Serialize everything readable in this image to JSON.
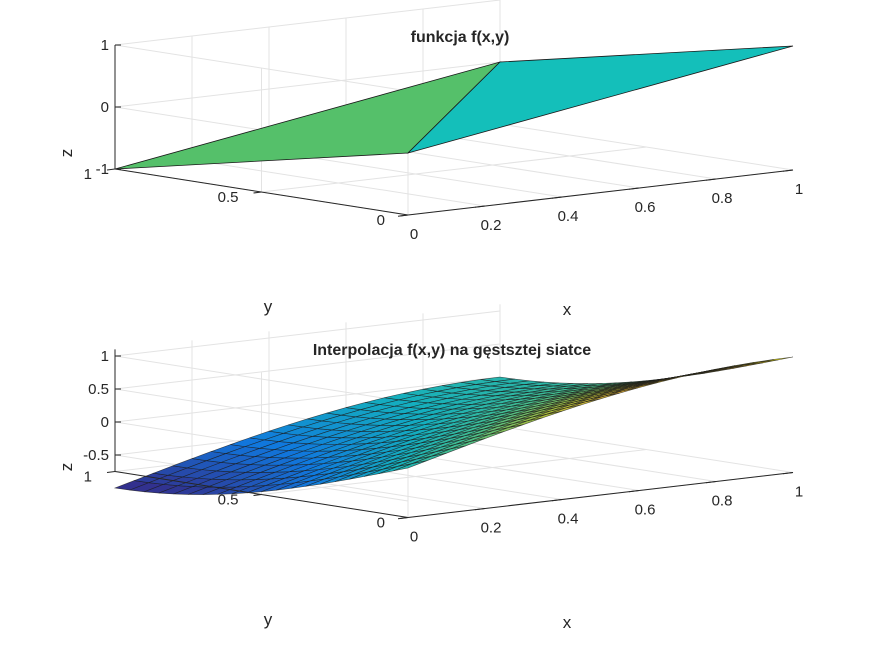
{
  "chart_data": [
    {
      "type": "surface",
      "title": "funkcja f(x,y)",
      "xlabel": "x",
      "ylabel": "y",
      "zlabel": "z",
      "x": [
        0,
        1
      ],
      "y": [
        0,
        1
      ],
      "z": [
        [
          0,
          1
        ],
        [
          -1,
          0
        ]
      ],
      "xlim": [
        0,
        1
      ],
      "ylim": [
        0,
        1
      ],
      "zlim": [
        -1,
        1
      ],
      "x_ticks": [
        "0",
        "0.2",
        "0.4",
        "0.6",
        "0.8",
        "1"
      ],
      "y_ticks": [
        "0",
        "0.5",
        "1"
      ],
      "z_ticks": [
        "-1",
        "0",
        "1"
      ],
      "grid": true,
      "colormap": "parula",
      "colors": {
        "surface": "#14bfba",
        "surface_low": "#55c06a"
      }
    },
    {
      "type": "surface",
      "title": "Interpolacja f(x,y) na gęstsztej siatce",
      "xlabel": "x",
      "ylabel": "y",
      "zlabel": "z",
      "x": [
        0,
        1
      ],
      "y": [
        0,
        1
      ],
      "grid_size": 21,
      "function": "sin(x*pi/2) - sin(y*pi/2)",
      "xlim": [
        0,
        1
      ],
      "ylim": [
        0,
        1
      ],
      "zlim": [
        -0.75,
        1.1
      ],
      "x_ticks": [
        "0",
        "0.2",
        "0.4",
        "0.6",
        "0.8",
        "1"
      ],
      "y_ticks": [
        "0",
        "0.5",
        "1"
      ],
      "z_ticks": [
        "-0.5",
        "0",
        "0.5",
        "1"
      ],
      "grid": true,
      "colormap": "parula",
      "colors": {
        "mesh": "#1a1a1a"
      }
    }
  ]
}
